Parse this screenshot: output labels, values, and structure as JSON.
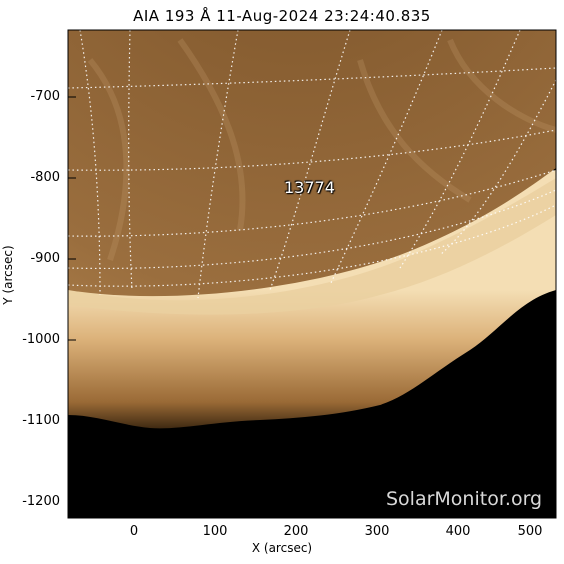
{
  "title": "AIA 193 Å 11-Aug-2024 23:24:40.835",
  "x_axis": {
    "label": "X (arcsec)",
    "ticks": [
      "0",
      "100",
      "200",
      "300",
      "400",
      "500"
    ]
  },
  "y_axis": {
    "label": "Y (arcsec)",
    "ticks": [
      "-700",
      "-800",
      "-900",
      "-1000",
      "-1100",
      "-1200"
    ]
  },
  "region_label": "13774",
  "watermark": "SolarMonitor.org",
  "colors": {
    "disk": "#a57a4a",
    "limb": "#e8c89a",
    "corona": "#c89558",
    "space": "#000000",
    "grid": "#ffffff"
  }
}
